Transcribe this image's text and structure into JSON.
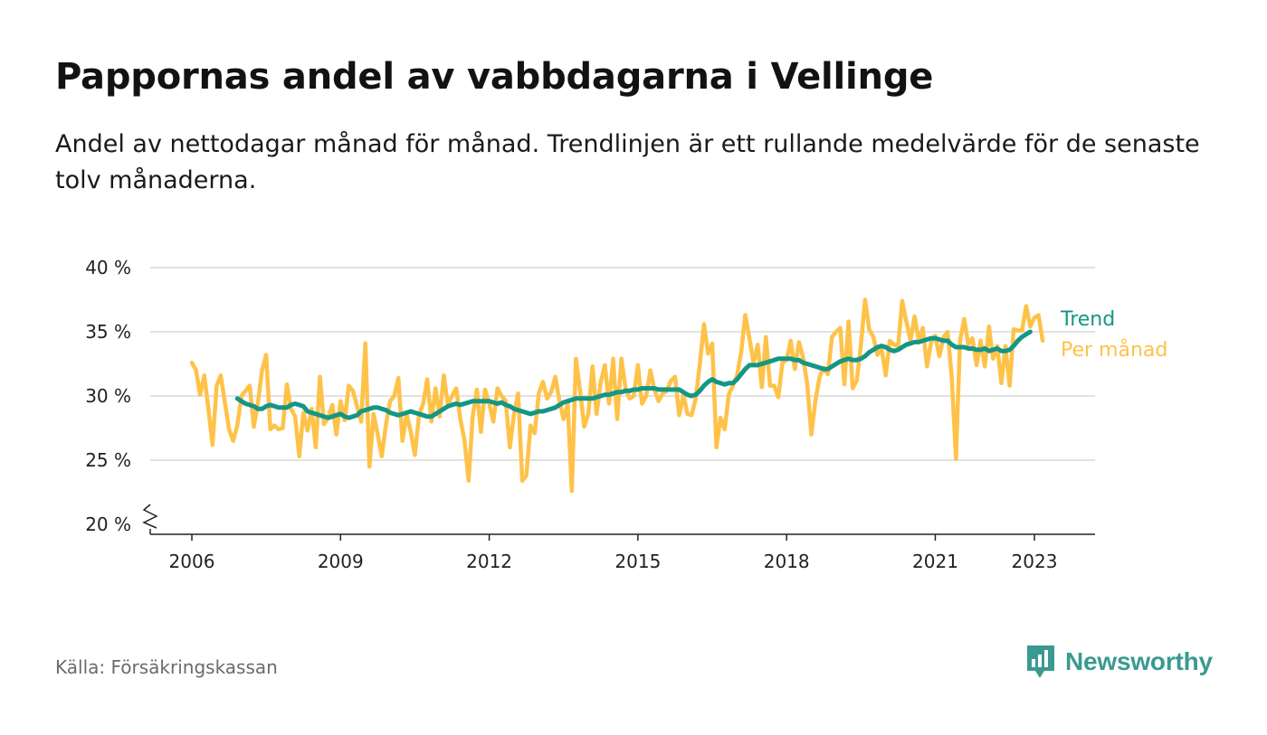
{
  "header": {
    "title": "Pappornas andel av vabbdagarna i Vellinge",
    "subtitle": "Andel av nettodagar månad för månad. Trendlinjen är ett rullande medelvärde för de senaste tolv månaderna."
  },
  "footer": {
    "source": "Källa: Försäkringskassan",
    "brand": "Newsworthy",
    "brand_icon": "bar-chart-speech-bubble-icon"
  },
  "colors": {
    "monthly": "#ffc249",
    "trend": "#149686",
    "grid": "#d9d9d9",
    "axis": "#222222",
    "brand": "#3a9a92"
  },
  "chart_data": {
    "type": "line",
    "x_unit": "year (decimal, monthly)",
    "y_unit": "%",
    "xlim": [
      2005.2,
      2024.3
    ],
    "ylim": [
      20,
      40
    ],
    "y_ticks": [
      20,
      25,
      30,
      35,
      40
    ],
    "y_tick_labels": [
      "20 %",
      "25 %",
      "30 %",
      "35 %",
      "40 %"
    ],
    "x_ticks": [
      2006,
      2009,
      2012,
      2015,
      2018,
      2021,
      2023
    ],
    "x_tick_labels": [
      "2006",
      "2009",
      "2012",
      "2015",
      "2018",
      "2021",
      "2023"
    ],
    "y_axis_break": true,
    "grid": "horizontal",
    "legend": "right, inline series labels",
    "series": [
      {
        "name": "Per månad",
        "x_start": 2006,
        "step": 0.08333,
        "values": [
          32.6,
          32,
          30.1,
          31.6,
          29,
          26.2,
          30.8,
          31.6,
          29.5,
          27.4,
          26.5,
          27.7,
          30,
          30.4,
          30.8,
          27.6,
          29.5,
          32,
          33.2,
          27.4,
          27.7,
          27.4,
          27.5,
          30.9,
          29,
          28.4,
          25.3,
          28.7,
          27.3,
          29,
          26,
          31.5,
          27.8,
          28.3,
          29.3,
          27,
          29.6,
          28.1,
          30.8,
          30.4,
          29.2,
          28,
          34.1,
          24.5,
          28.6,
          27,
          25.3,
          27.8,
          29.6,
          30,
          31.4,
          26.5,
          28.6,
          27.2,
          25.4,
          28.5,
          29.4,
          31.3,
          28,
          30.6,
          28.4,
          31.6,
          29.3,
          30,
          30.6,
          28.2,
          26.6,
          23.4,
          28.4,
          30.5,
          27.2,
          30.5,
          29.4,
          28,
          30.6,
          30,
          29.6,
          26,
          28.6,
          30.2,
          23.4,
          23.8,
          27.7,
          27.1,
          30.2,
          31.1,
          29.8,
          30.3,
          31.5,
          29.6,
          28.2,
          29.4,
          22.6,
          32.9,
          30.4,
          27.6,
          28.6,
          32.3,
          28.6,
          31.1,
          32.4,
          29.4,
          32.9,
          28.2,
          32.9,
          30.6,
          29.8,
          30,
          32.4,
          29.4,
          30,
          32,
          30.5,
          29.6,
          30.2,
          30.4,
          31.2,
          31.5,
          28.5,
          30.1,
          28.6,
          28.5,
          29.8,
          32.5,
          35.6,
          33.3,
          34.1,
          26,
          28.3,
          27.4,
          30.1,
          30.8,
          31.6,
          33.4,
          36.3,
          34.5,
          32.6,
          34,
          30.7,
          34.6,
          30.8,
          30.8,
          29.9,
          32.6,
          32.8,
          34.3,
          32.1,
          34.2,
          33,
          30.9,
          27,
          29.7,
          31.5,
          32.2,
          31.7,
          34.6,
          35,
          35.3,
          30.9,
          35.8,
          30.6,
          31.2,
          34,
          37.5,
          35.2,
          34.6,
          33.2,
          33.7,
          31.6,
          34.3,
          34,
          33.9,
          37.4,
          35.8,
          34.3,
          36.2,
          34.3,
          35.3,
          32.3,
          34.2,
          34.7,
          33.1,
          34.6,
          35,
          31.4,
          25.1,
          34.3,
          36,
          34,
          34.5,
          32.4,
          34.3,
          32.3,
          35.4,
          32.9,
          33.9,
          31,
          33.9,
          30.8,
          35.2,
          35.1,
          35.1,
          37,
          35.4,
          36.1,
          36.3,
          34.3
        ]
      },
      {
        "name": "Trend",
        "x_start": 2006.9167,
        "step": 0.08333,
        "values": [
          29.8,
          29.6,
          29.4,
          29.3,
          29.2,
          29,
          29,
          29.2,
          29.3,
          29.2,
          29.1,
          29.1,
          29.1,
          29.3,
          29.4,
          29.3,
          29.2,
          28.8,
          28.7,
          28.6,
          28.5,
          28.4,
          28.3,
          28.4,
          28.5,
          28.6,
          28.4,
          28.3,
          28.4,
          28.5,
          28.8,
          28.9,
          29,
          29.1,
          29.1,
          29,
          28.9,
          28.7,
          28.6,
          28.5,
          28.6,
          28.7,
          28.8,
          28.7,
          28.6,
          28.5,
          28.4,
          28.4,
          28.6,
          28.8,
          29,
          29.2,
          29.3,
          29.4,
          29.3,
          29.4,
          29.5,
          29.6,
          29.6,
          29.6,
          29.6,
          29.6,
          29.5,
          29.4,
          29.5,
          29.3,
          29.2,
          29,
          28.9,
          28.8,
          28.7,
          28.6,
          28.7,
          28.8,
          28.8,
          28.9,
          29,
          29.1,
          29.3,
          29.5,
          29.6,
          29.7,
          29.8,
          29.8,
          29.8,
          29.8,
          29.8,
          29.9,
          30,
          30.1,
          30.1,
          30.2,
          30.3,
          30.3,
          30.4,
          30.4,
          30.5,
          30.5,
          30.6,
          30.6,
          30.6,
          30.6,
          30.5,
          30.5,
          30.5,
          30.5,
          30.5,
          30.5,
          30.3,
          30.1,
          30,
          30.1,
          30.4,
          30.8,
          31.1,
          31.3,
          31.1,
          31,
          30.9,
          31,
          31,
          31.3,
          31.7,
          32.1,
          32.4,
          32.4,
          32.4,
          32.5,
          32.6,
          32.7,
          32.8,
          32.9,
          32.9,
          32.9,
          32.9,
          32.8,
          32.8,
          32.6,
          32.5,
          32.4,
          32.3,
          32.2,
          32.1,
          32.1,
          32.3,
          32.5,
          32.7,
          32.8,
          32.9,
          32.8,
          32.8,
          32.9,
          33.1,
          33.4,
          33.6,
          33.8,
          33.9,
          33.8,
          33.6,
          33.5,
          33.6,
          33.8,
          34,
          34.1,
          34.2,
          34.2,
          34.3,
          34.4,
          34.5,
          34.5,
          34.4,
          34.3,
          34.3,
          34,
          33.8,
          33.8,
          33.8,
          33.7,
          33.7,
          33.6,
          33.6,
          33.7,
          33.5,
          33.6,
          33.7,
          33.5,
          33.5,
          33.6,
          33.9,
          34.3,
          34.6,
          34.8,
          35
        ]
      }
    ]
  }
}
